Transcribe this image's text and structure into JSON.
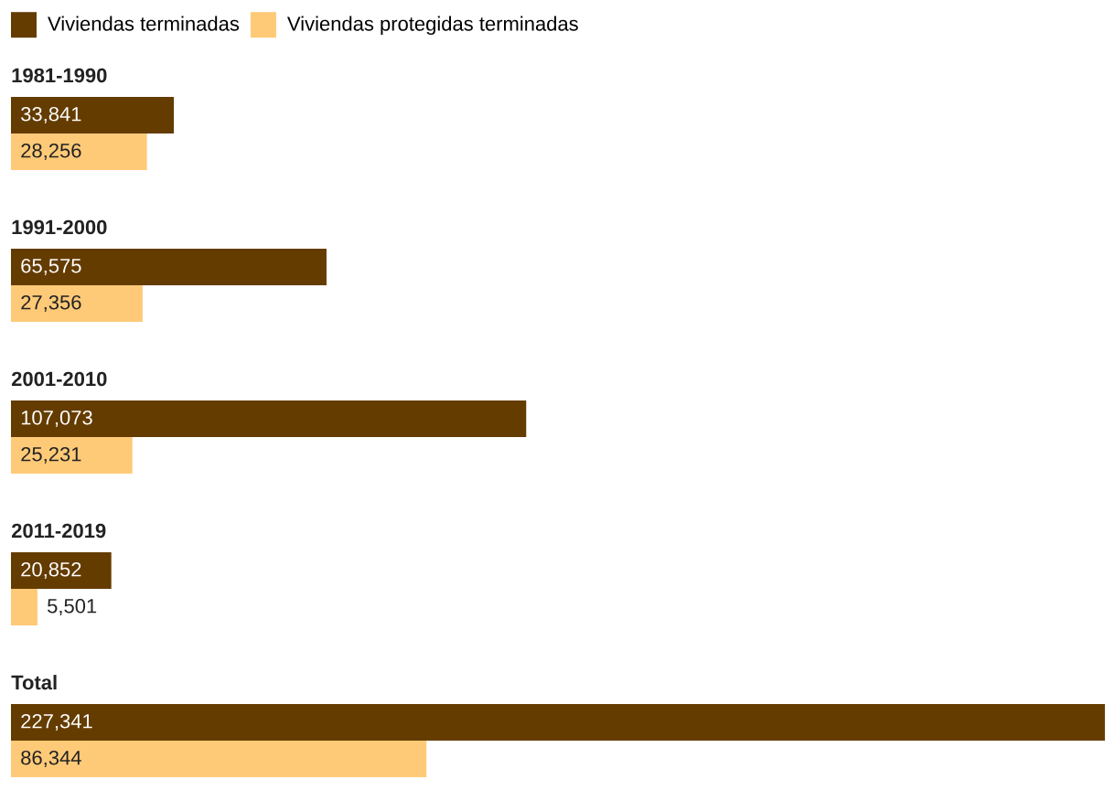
{
  "chart_data": {
    "type": "bar",
    "orientation": "horizontal",
    "legend": "top left",
    "categories": [
      "1981-1990",
      "1991-2000",
      "2001-2010",
      "2011-2019",
      "Total"
    ],
    "series": [
      {
        "name": "Viviendas terminadas",
        "color": "#643c00",
        "values": [
          33841,
          65575,
          107073,
          20852,
          227341
        ],
        "value_labels": [
          "33,841",
          "65,575",
          "107,073",
          "20,852",
          "227,341"
        ]
      },
      {
        "name": "Viviendas protegidas terminadas",
        "color": "#ffca78",
        "values": [
          28256,
          27356,
          25231,
          5501,
          86344
        ],
        "value_labels": [
          "28,256",
          "27,356",
          "25,231",
          "5,501",
          "86,344"
        ]
      }
    ]
  }
}
